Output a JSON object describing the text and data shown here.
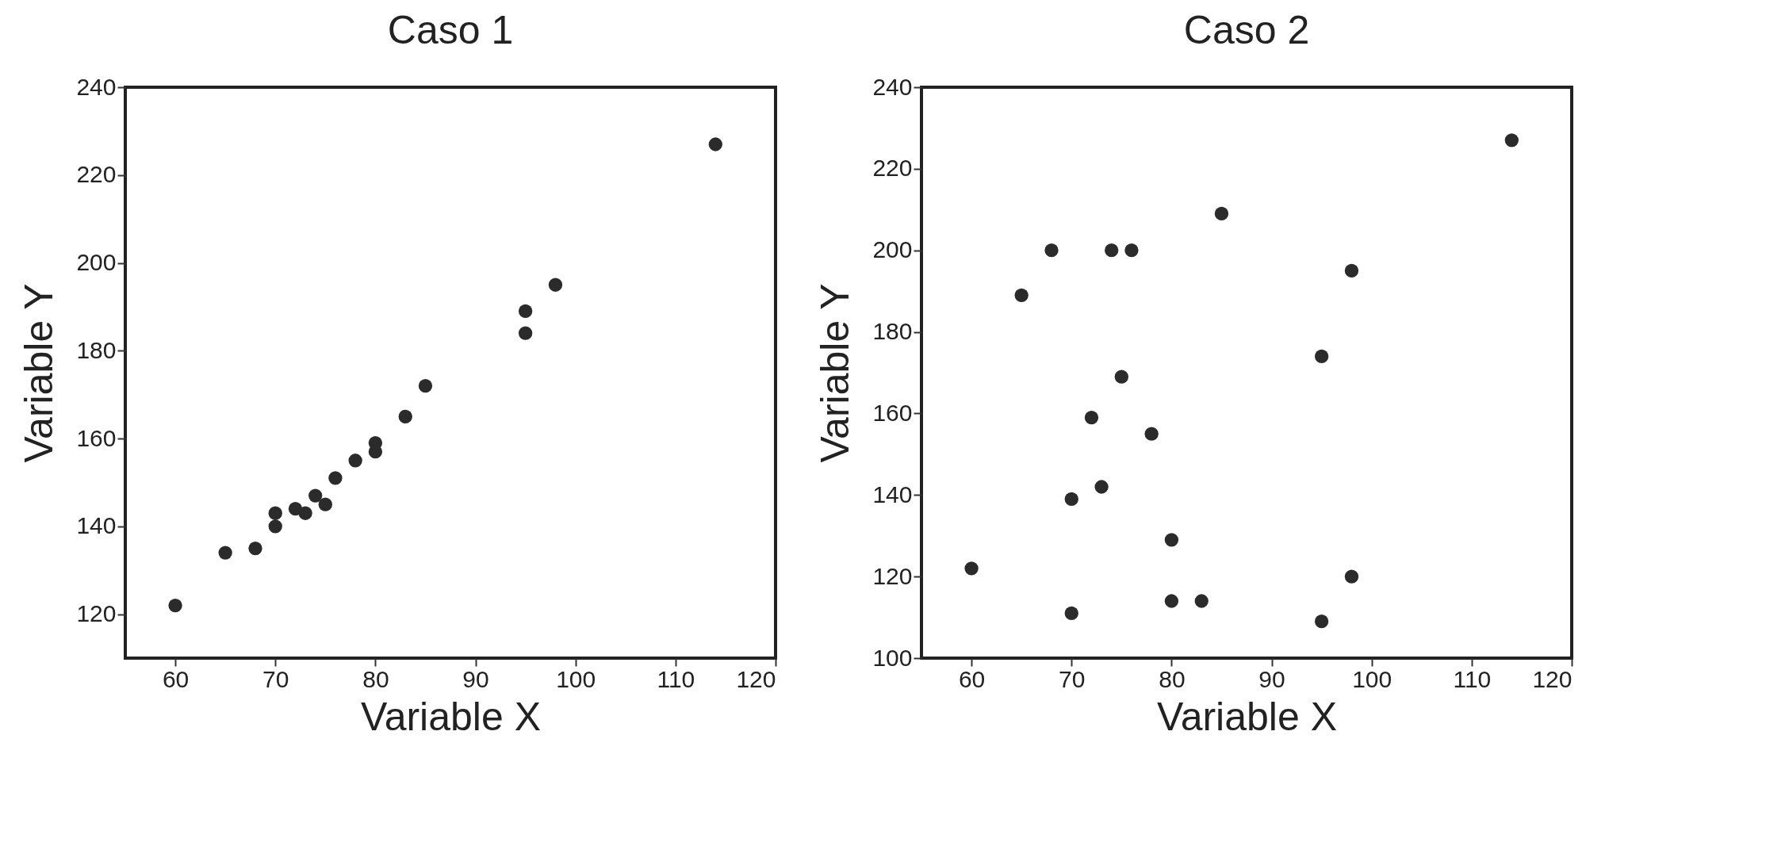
{
  "chart_data": [
    {
      "type": "scatter",
      "title": "Caso 1",
      "xlabel": "Variable X",
      "ylabel": "Variable Y",
      "marker": "circle",
      "color": "#2b2b2b",
      "x": [
        60,
        65,
        68,
        70,
        70,
        72,
        73,
        74,
        75,
        76,
        78,
        80,
        80,
        83,
        85,
        95,
        95,
        98,
        114
      ],
      "values": [
        122,
        134,
        135,
        140,
        143,
        144,
        143,
        147,
        145,
        151,
        155,
        157,
        159,
        165,
        172,
        184,
        189,
        195,
        227
      ],
      "xlim": [
        55,
        120
      ],
      "xticks": [
        60,
        70,
        80,
        90,
        100,
        110,
        120
      ],
      "ylim": [
        110,
        240
      ],
      "yticks": [
        120,
        140,
        160,
        180,
        200,
        220,
        240
      ]
    },
    {
      "type": "scatter",
      "title": "Caso 2",
      "xlabel": "Variable X",
      "ylabel": "Variable Y",
      "marker": "circle",
      "color": "#2b2b2b",
      "x": [
        60,
        65,
        68,
        74,
        76,
        85,
        98,
        114,
        95,
        75,
        72,
        78,
        70,
        73,
        80,
        98,
        70,
        80,
        83,
        95
      ],
      "values": [
        122,
        189,
        200,
        200,
        200,
        209,
        195,
        227,
        174,
        169,
        159,
        155,
        139,
        142,
        129,
        120,
        111,
        114,
        114,
        109
      ],
      "xlim": [
        55,
        120
      ],
      "xticks": [
        60,
        70,
        80,
        90,
        100,
        110,
        120
      ],
      "ylim": [
        100,
        240
      ],
      "yticks": [
        100,
        120,
        140,
        160,
        180,
        200,
        220,
        240
      ]
    }
  ]
}
